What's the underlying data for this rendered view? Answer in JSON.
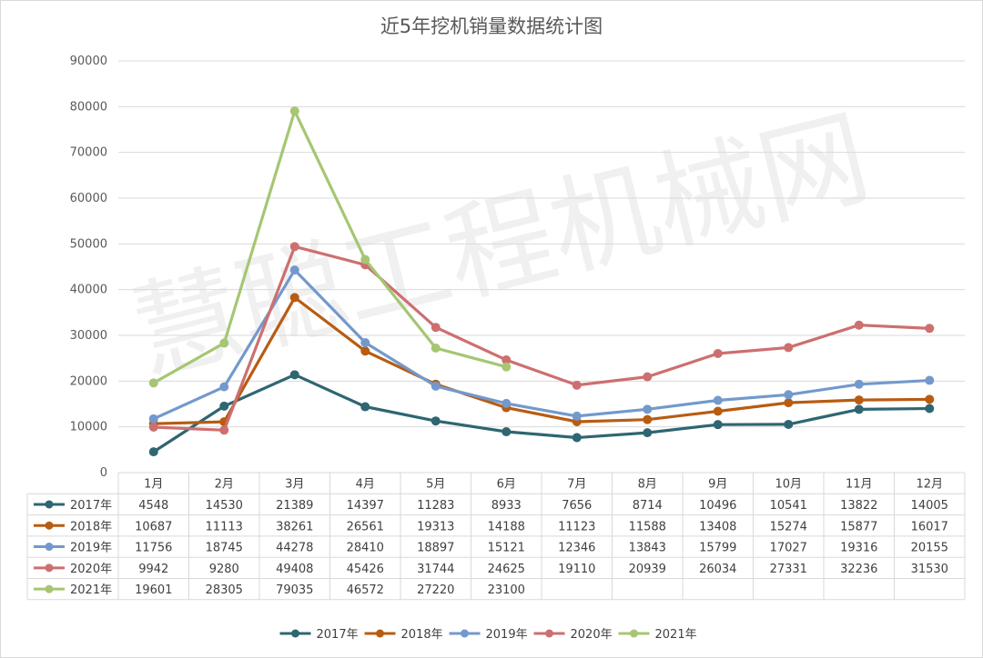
{
  "chart_data": {
    "type": "line",
    "title": "近5年挖机销量数据统计图",
    "categories": [
      "1月",
      "2月",
      "3月",
      "4月",
      "5月",
      "6月",
      "7月",
      "8月",
      "9月",
      "10月",
      "11月",
      "12月"
    ],
    "ylim": [
      0,
      90000
    ],
    "yticks": [
      "0",
      "10000",
      "20000",
      "30000",
      "40000",
      "50000",
      "60000",
      "70000",
      "80000",
      "90000"
    ],
    "series": [
      {
        "name": "2017年",
        "color": "#2e6672",
        "values": [
          4548,
          14530,
          21389,
          14397,
          11283,
          8933,
          7656,
          8714,
          10496,
          10541,
          13822,
          14005
        ]
      },
      {
        "name": "2018年",
        "color": "#b85c12",
        "values": [
          10687,
          11113,
          38261,
          26561,
          19313,
          14188,
          11123,
          11588,
          13408,
          15274,
          15877,
          16017
        ]
      },
      {
        "name": "2019年",
        "color": "#7399cc",
        "values": [
          11756,
          18745,
          44278,
          28410,
          18897,
          15121,
          12346,
          13843,
          15799,
          17027,
          19316,
          20155
        ]
      },
      {
        "name": "2020年",
        "color": "#cd6f70",
        "values": [
          9942,
          9280,
          49408,
          45426,
          31744,
          24625,
          19110,
          20939,
          26034,
          27331,
          32236,
          31530
        ]
      },
      {
        "name": "2021年",
        "color": "#a6c673",
        "values": [
          19601,
          28305,
          79035,
          46572,
          27220,
          23100,
          null,
          null,
          null,
          null,
          null,
          null
        ]
      }
    ],
    "legend_position": "bottom",
    "grid": true,
    "watermark": "慧聪工程机械网"
  }
}
